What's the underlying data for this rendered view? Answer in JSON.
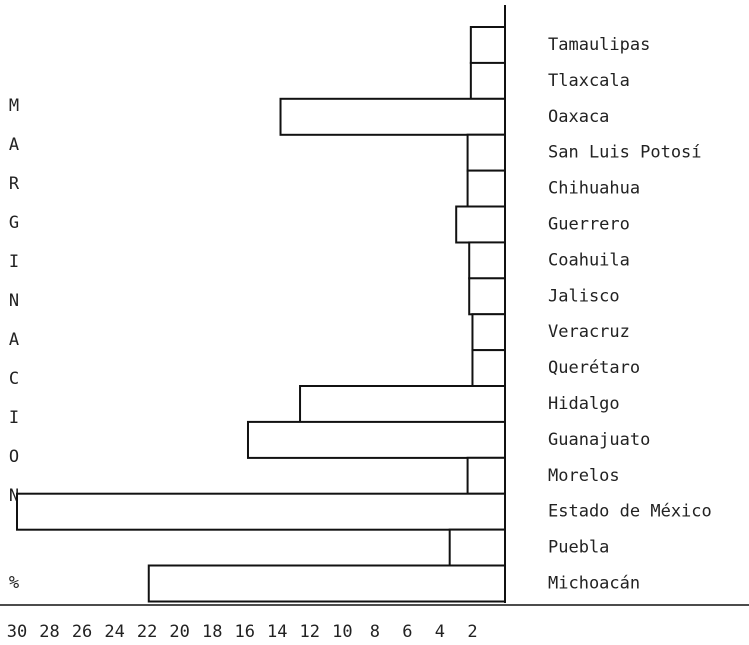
{
  "chart_data": {
    "type": "bar",
    "orientation": "horizontal",
    "y_label": "MARGINACION",
    "unit_label": "%",
    "categories": [
      "Tamaulipas",
      "Tlaxcala",
      "Oaxaca",
      "San Luis Potosí",
      "Chihuahua",
      "Guerrero",
      "Coahuila",
      "Jalisco",
      "Veracruz",
      "Querétaro",
      "Hidalgo",
      "Guanajuato",
      "Morelos",
      "Estado de México",
      "Puebla",
      "Michoacán"
    ],
    "values": [
      2.1,
      2.1,
      13.8,
      2.3,
      2.3,
      3.0,
      2.2,
      2.2,
      2.0,
      2.0,
      12.6,
      15.8,
      2.3,
      30,
      3.4,
      21.9
    ],
    "color": "#ffffff",
    "edge_color": "#111111",
    "xlim": [
      0,
      30
    ],
    "xticks": [
      30,
      28,
      26,
      24,
      22,
      20,
      18,
      16,
      14,
      12,
      10,
      8,
      6,
      4,
      2
    ]
  }
}
